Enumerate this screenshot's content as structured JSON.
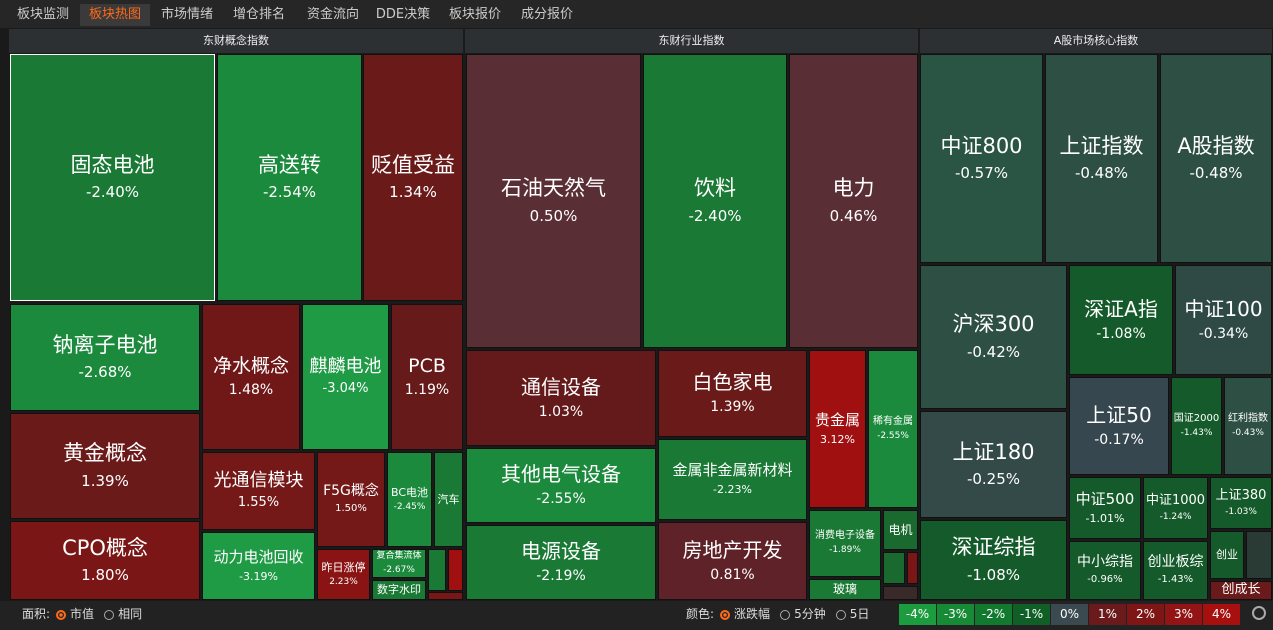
{
  "tabs": [
    {
      "label": "板块监测",
      "active": false
    },
    {
      "label": "板块热图",
      "active": true
    },
    {
      "label": "市场情绪",
      "active": false
    },
    {
      "label": "增仓排名",
      "active": false
    },
    {
      "label": "资金流向",
      "active": false
    },
    {
      "label": "DDE决策",
      "active": false
    },
    {
      "label": "板块报价",
      "active": false
    },
    {
      "label": "成分报价",
      "active": false
    }
  ],
  "panels": [
    {
      "title": "东财概念指数",
      "tiles": [
        {
          "name": "固态电池",
          "change": "-2.40%",
          "color": "#1a7a35"
        },
        {
          "name": "高送转",
          "change": "-2.54%",
          "color": "#1b8a3c"
        },
        {
          "name": "贬值受益",
          "change": "1.34%",
          "color": "#6b1a1a"
        },
        {
          "name": "钠离子电池",
          "change": "-2.68%",
          "color": "#1b8a3c"
        },
        {
          "name": "净水概念",
          "change": "1.48%",
          "color": "#701818"
        },
        {
          "name": "麒麟电池",
          "change": "-3.04%",
          "color": "#1f9a45"
        },
        {
          "name": "PCB",
          "change": "1.19%",
          "color": "#661a1a"
        },
        {
          "name": "黄金概念",
          "change": "1.39%",
          "color": "#6b1a1a"
        },
        {
          "name": "光通信模块",
          "change": "1.55%",
          "color": "#741818"
        },
        {
          "name": "F5G概念",
          "change": "1.50%",
          "color": "#741818"
        },
        {
          "name": "BC电池",
          "change": "-2.45%",
          "color": "#1b8a3c"
        },
        {
          "name": "汽车",
          "color": "#1a7a35"
        },
        {
          "name": "CPO概念",
          "change": "1.80%",
          "color": "#7a1616"
        },
        {
          "name": "动力电池回收",
          "change": "-3.19%",
          "color": "#1f9a45"
        },
        {
          "name": "昨日涨停",
          "change": "2.23%",
          "color": "#8a1414"
        },
        {
          "name": "复合集流体",
          "change": "-2.67%",
          "color": "#1b8a3c"
        },
        {
          "name": "数字水印",
          "color": "#1a7a35"
        }
      ]
    },
    {
      "title": "东财行业指数",
      "tiles": [
        {
          "name": "石油天然气",
          "change": "0.50%",
          "color": "#5a2e35"
        },
        {
          "name": "饮料",
          "change": "-2.40%",
          "color": "#1a7a35"
        },
        {
          "name": "电力",
          "change": "0.46%",
          "color": "#5a2e35"
        },
        {
          "name": "通信设备",
          "change": "1.03%",
          "color": "#641a1a"
        },
        {
          "name": "白色家电",
          "change": "1.39%",
          "color": "#6b1a1a"
        },
        {
          "name": "贵金属",
          "change": "3.12%",
          "color": "#a01010"
        },
        {
          "name": "稀有金属",
          "change": "-2.55%",
          "color": "#1b8a3c"
        },
        {
          "name": "其他电气设备",
          "change": "-2.55%",
          "color": "#1b8a3c"
        },
        {
          "name": "金属非金属新材料",
          "change": "-2.23%",
          "color": "#1a7a35"
        },
        {
          "name": "电源设备",
          "change": "-2.19%",
          "color": "#1a7a35"
        },
        {
          "name": "房地产开发",
          "change": "0.81%",
          "color": "#5e2228"
        },
        {
          "name": "消费电子设备",
          "change": "-1.89%",
          "color": "#1a7a35"
        },
        {
          "name": "电机",
          "color": "#1a6a30"
        },
        {
          "name": "玻璃",
          "color": "#1a7a35"
        }
      ]
    },
    {
      "title": "A股市场核心指数",
      "tiles": [
        {
          "name": "中证800",
          "change": "-0.57%",
          "color": "#2a5444"
        },
        {
          "name": "上证指数",
          "change": "-0.48%",
          "color": "#2d4f44"
        },
        {
          "name": "A股指数",
          "change": "-0.48%",
          "color": "#2d4f44"
        },
        {
          "name": "沪深300",
          "change": "-0.42%",
          "color": "#2d4f44"
        },
        {
          "name": "深证A指",
          "change": "-1.08%",
          "color": "#155a2a"
        },
        {
          "name": "中证100",
          "change": "-0.34%",
          "color": "#2f4a44"
        },
        {
          "name": "上证180",
          "change": "-0.25%",
          "color": "#334a48"
        },
        {
          "name": "上证50",
          "change": "-0.17%",
          "color": "#37474f"
        },
        {
          "name": "国证2000",
          "change": "-1.43%",
          "color": "#155a2a"
        },
        {
          "name": "红利指数",
          "change": "-0.43%",
          "color": "#2d4f44"
        },
        {
          "name": "深证综指",
          "change": "-1.08%",
          "color": "#155a2a"
        },
        {
          "name": "中证500",
          "change": "-1.01%",
          "color": "#155a2a"
        },
        {
          "name": "中证1000",
          "change": "-1.24%",
          "color": "#155a2a"
        },
        {
          "name": "上证380",
          "change": "-1.03%",
          "color": "#155a2a"
        },
        {
          "name": "中小综指",
          "change": "-0.96%",
          "color": "#155a2a"
        },
        {
          "name": "创业板综",
          "change": "-1.43%",
          "color": "#155a2a"
        },
        {
          "name": "创业",
          "color": "#155a2a"
        },
        {
          "name": "创成长",
          "color": "#6a1a1a"
        }
      ]
    }
  ],
  "bottom": {
    "area_label": "面积:",
    "area_options": [
      {
        "label": "市值",
        "selected": true
      },
      {
        "label": "相同",
        "selected": false
      }
    ],
    "color_label": "颜色:",
    "color_options": [
      {
        "label": "涨跌幅",
        "selected": true
      },
      {
        "label": "5分钟",
        "selected": false
      },
      {
        "label": "5日",
        "selected": false
      }
    ],
    "legend": [
      {
        "label": "-4%",
        "color": "#1c9b3f"
      },
      {
        "label": "-3%",
        "color": "#178a36"
      },
      {
        "label": "-2%",
        "color": "#127a2f"
      },
      {
        "label": "-1%",
        "color": "#0f5f26"
      },
      {
        "label": "0%",
        "color": "#3a4a50"
      },
      {
        "label": "1%",
        "color": "#6a1a1a"
      },
      {
        "label": "2%",
        "color": "#7e1616"
      },
      {
        "label": "3%",
        "color": "#931414"
      },
      {
        "label": "4%",
        "color": "#a81010"
      }
    ]
  }
}
